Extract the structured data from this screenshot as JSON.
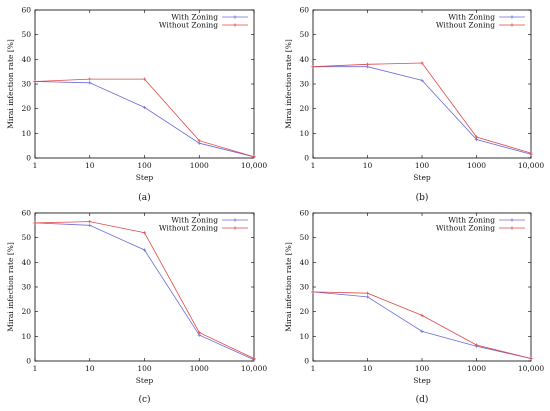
{
  "chart_data": [
    {
      "type": "line",
      "caption": "(a)",
      "xlabel": "Step",
      "ylabel": "Mirai infection rate [%]",
      "x": [
        1,
        10,
        100,
        1000,
        10000
      ],
      "x_tick_labels": [
        "1",
        "10",
        "100",
        "1000",
        "10,000"
      ],
      "x_scale": "log",
      "ylim": [
        0,
        60
      ],
      "y_ticks": [
        0,
        10,
        20,
        30,
        40,
        50,
        60
      ],
      "legend_position": "top-right",
      "series": [
        {
          "name": "With Zoning",
          "color": "#6b6bd6",
          "values": [
            31,
            30.5,
            20.5,
            6,
            0.5
          ]
        },
        {
          "name": "Without Zoning",
          "color": "#e04848",
          "values": [
            31,
            32,
            32,
            7,
            0.5
          ]
        }
      ]
    },
    {
      "type": "line",
      "caption": "(b)",
      "xlabel": "Step",
      "ylabel": "Mirai infection rate [%]",
      "x": [
        1,
        10,
        100,
        1000,
        10000
      ],
      "x_tick_labels": [
        "1",
        "10",
        "100",
        "1000",
        "10,000"
      ],
      "x_scale": "log",
      "ylim": [
        0,
        60
      ],
      "y_ticks": [
        0,
        10,
        20,
        30,
        40,
        50,
        60
      ],
      "legend_position": "top-right",
      "series": [
        {
          "name": "With Zoning",
          "color": "#6b6bd6",
          "values": [
            37,
            37,
            31.5,
            7.5,
            1.5
          ]
        },
        {
          "name": "Without Zoning",
          "color": "#e04848",
          "values": [
            37,
            38,
            38.5,
            8.5,
            2
          ]
        }
      ]
    },
    {
      "type": "line",
      "caption": "(c)",
      "xlabel": "Step",
      "ylabel": "Mirai infection rate [%]",
      "x": [
        1,
        10,
        100,
        1000,
        10000
      ],
      "x_tick_labels": [
        "1",
        "10",
        "100",
        "1000",
        "10,000"
      ],
      "x_scale": "log",
      "ylim": [
        0,
        60
      ],
      "y_ticks": [
        0,
        10,
        20,
        30,
        40,
        50,
        60
      ],
      "legend_position": "top-right",
      "series": [
        {
          "name": "With Zoning",
          "color": "#6b6bd6",
          "values": [
            56,
            55,
            45,
            10.5,
            0.5
          ]
        },
        {
          "name": "Without Zoning",
          "color": "#e04848",
          "values": [
            56,
            56.5,
            52,
            11.5,
            1
          ]
        }
      ]
    },
    {
      "type": "line",
      "caption": "(d)",
      "xlabel": "Step",
      "ylabel": "Mirai infection rate [%]",
      "x": [
        1,
        10,
        100,
        1000,
        10000
      ],
      "x_tick_labels": [
        "1",
        "10",
        "100",
        "1000",
        "10,000"
      ],
      "x_scale": "log",
      "ylim": [
        0,
        60
      ],
      "y_ticks": [
        0,
        10,
        20,
        30,
        40,
        50,
        60
      ],
      "legend_position": "top-right",
      "series": [
        {
          "name": "With Zoning",
          "color": "#6b6bd6",
          "values": [
            28,
            26,
            12,
            6,
            1
          ]
        },
        {
          "name": "Without Zoning",
          "color": "#e04848",
          "values": [
            28,
            27.5,
            18.5,
            6.5,
            1
          ]
        }
      ]
    }
  ]
}
